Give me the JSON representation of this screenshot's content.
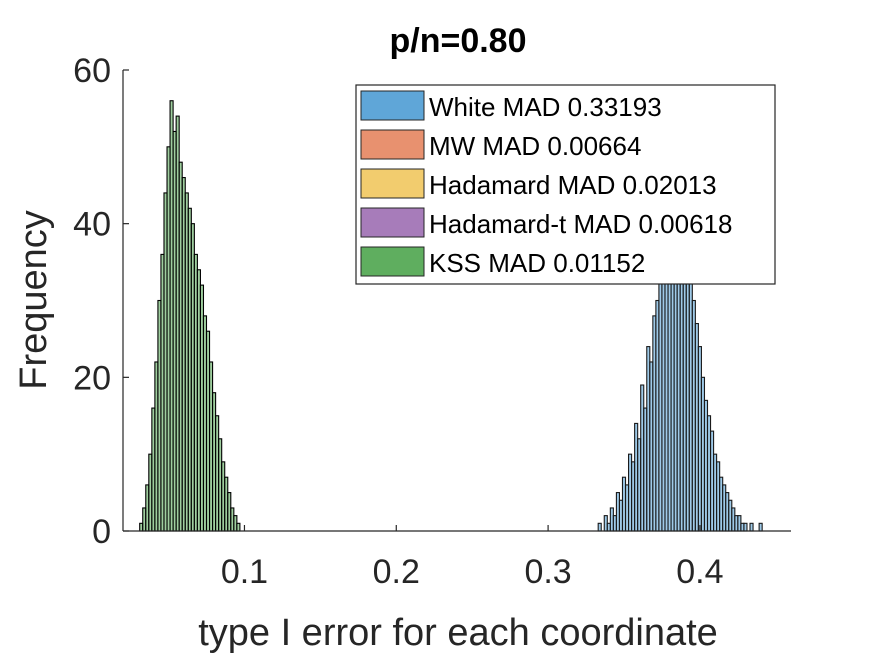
{
  "chart_data": {
    "type": "bar",
    "title": "p/n=0.80",
    "xlabel": "type I error for each coordinate",
    "ylabel": "Frequency",
    "xlim": [
      0.02,
      0.46
    ],
    "ylim": [
      0,
      60
    ],
    "xticks": [
      "0.1",
      "0.2",
      "0.3",
      "0.4"
    ],
    "yticks": [
      "0",
      "20",
      "40",
      "60"
    ],
    "grid": false,
    "legend_position": "top-right",
    "series": [
      {
        "name": "White MAD 0.33193",
        "color": "#5fa6d8",
        "edge_color": "#1a1a1a",
        "x": [
          0.334,
          0.336,
          0.338,
          0.34,
          0.342,
          0.344,
          0.346,
          0.348,
          0.35,
          0.352,
          0.354,
          0.356,
          0.358,
          0.36,
          0.362,
          0.364,
          0.366,
          0.368,
          0.37,
          0.372,
          0.374,
          0.376,
          0.378,
          0.38,
          0.382,
          0.384,
          0.386,
          0.388,
          0.39,
          0.392,
          0.394,
          0.396,
          0.398,
          0.4,
          0.402,
          0.404,
          0.406,
          0.408,
          0.41,
          0.412,
          0.414,
          0.416,
          0.418,
          0.42,
          0.422,
          0.424,
          0.426,
          0.428,
          0.43,
          0.432,
          0.434,
          0.436,
          0.438,
          0.44
        ],
        "values": [
          1,
          0,
          2,
          1,
          3,
          2,
          5,
          4,
          7,
          6,
          10,
          9,
          14,
          12,
          19,
          16,
          24,
          22,
          28,
          30,
          33,
          36,
          40,
          44,
          48,
          52,
          50,
          46,
          42,
          38,
          34,
          30,
          27,
          24,
          20,
          17,
          15,
          13,
          10,
          9,
          7,
          6,
          5,
          4,
          3,
          2,
          2,
          1,
          1,
          0,
          1,
          0,
          0,
          1
        ]
      },
      {
        "name": "MW MAD 0.00664",
        "color": "#e8916f",
        "edge_color": "#1a1a1a",
        "x": [],
        "values": []
      },
      {
        "name": "Hadamard MAD 0.02013",
        "color": "#f2cc6e",
        "edge_color": "#1a1a1a",
        "x": [],
        "values": []
      },
      {
        "name": "Hadamard-t MAD 0.00618",
        "color": "#a77cba",
        "edge_color": "#1a1a1a",
        "x": [],
        "values": []
      },
      {
        "name": "KSS MAD 0.01152",
        "color": "#5fae5f",
        "edge_color": "#000000",
        "x": [
          0.032,
          0.034,
          0.036,
          0.038,
          0.04,
          0.042,
          0.044,
          0.046,
          0.048,
          0.05,
          0.052,
          0.054,
          0.056,
          0.058,
          0.06,
          0.062,
          0.064,
          0.066,
          0.068,
          0.07,
          0.072,
          0.074,
          0.076,
          0.078,
          0.08,
          0.082,
          0.084,
          0.086,
          0.088,
          0.09,
          0.092,
          0.094,
          0.096
        ],
        "values": [
          1,
          3,
          6,
          10,
          16,
          22,
          30,
          36,
          44,
          50,
          56,
          52,
          54,
          48,
          46,
          44,
          42,
          40,
          36,
          34,
          32,
          28,
          26,
          22,
          18,
          15,
          12,
          9,
          7,
          5,
          3,
          2,
          1
        ]
      }
    ]
  }
}
